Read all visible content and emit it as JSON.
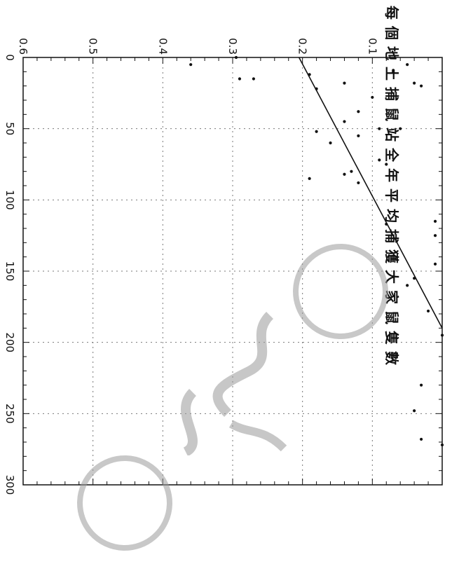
{
  "chart_data": {
    "type": "scatter",
    "orientation": "rotated-90-clockwise",
    "ylabel": "每個地上捕鼠站全年平均捕獲大家鼠隻數",
    "xlabel": "",
    "xlim": [
      0,
      300
    ],
    "ylim": [
      0,
      0.6
    ],
    "x_ticks": [
      "0",
      "50",
      "100",
      "150",
      "200",
      "250",
      "300"
    ],
    "y_ticks": [
      "0.1",
      "0.2",
      "0.3",
      "0.4",
      "0.5",
      "0.6"
    ],
    "grid": true,
    "points": [
      {
        "x": 5,
        "y": 0.05
      },
      {
        "x": 9,
        "y": 0.07
      },
      {
        "x": 12,
        "y": 0.19
      },
      {
        "x": 18,
        "y": 0.14
      },
      {
        "x": 18,
        "y": 0.04
      },
      {
        "x": 20,
        "y": 0.03
      },
      {
        "x": 22,
        "y": 0.18
      },
      {
        "x": 28,
        "y": 0.1
      },
      {
        "x": 38,
        "y": 0.12
      },
      {
        "x": 45,
        "y": 0.14
      },
      {
        "x": 50,
        "y": 0.09
      },
      {
        "x": 50,
        "y": 0.06
      },
      {
        "x": 52,
        "y": 0.18
      },
      {
        "x": 55,
        "y": 0.12
      },
      {
        "x": 60,
        "y": 0.16
      },
      {
        "x": 72,
        "y": 0.09
      },
      {
        "x": 75,
        "y": 0.08
      },
      {
        "x": 80,
        "y": 0.13
      },
      {
        "x": 82,
        "y": 0.14
      },
      {
        "x": 85,
        "y": 0.19
      },
      {
        "x": 88,
        "y": 0.12
      },
      {
        "x": 115,
        "y": 0.01
      },
      {
        "x": 117,
        "y": 0.08
      },
      {
        "x": 125,
        "y": 0.01
      },
      {
        "x": 145,
        "y": 0.01
      },
      {
        "x": 155,
        "y": 0.04
      },
      {
        "x": 160,
        "y": 0.05
      },
      {
        "x": 178,
        "y": 0.02
      },
      {
        "x": 195,
        "y": 0.0
      },
      {
        "x": 230,
        "y": 0.03
      },
      {
        "x": 248,
        "y": 0.04
      },
      {
        "x": 268,
        "y": 0.03
      },
      {
        "x": 272,
        "y": 0.0
      },
      {
        "x": 0,
        "y": 0.295
      },
      {
        "x": 15,
        "y": 0.27
      },
      {
        "x": 5,
        "y": 0.36
      },
      {
        "x": 10,
        "y": 0.07
      },
      {
        "x": 15,
        "y": 0.29
      }
    ],
    "fit_line": {
      "x": [
        0,
        190
      ],
      "y": [
        0.205,
        0.0
      ]
    }
  }
}
